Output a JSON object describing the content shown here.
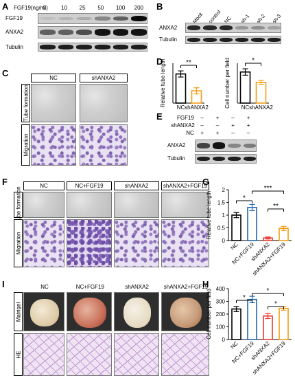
{
  "panels": {
    "A": {
      "label": "A",
      "dose_header": "FGF19(ng/ml)",
      "doses": [
        "0",
        "10",
        "25",
        "50",
        "100",
        "200"
      ],
      "rows": [
        "FGF19",
        "ANXA2",
        "Tubulin"
      ],
      "band_intensity": {
        "FGF19": [
          0.05,
          0.1,
          0.15,
          0.35,
          0.55,
          1.0
        ],
        "ANXA2": [
          0.55,
          0.55,
          0.65,
          0.95,
          0.95,
          0.95
        ],
        "Tubulin": [
          0.9,
          0.9,
          0.9,
          0.9,
          0.9,
          0.9
        ]
      }
    },
    "B": {
      "label": "B",
      "lanes": [
        "Mock",
        "control",
        "NC",
        "sh-1",
        "sh-2",
        "sh-3"
      ],
      "rows": [
        "ANXA2",
        "Tubulin"
      ],
      "band_intensity": {
        "ANXA2": [
          0.85,
          0.85,
          0.85,
          0.25,
          0.3,
          0.2
        ],
        "Tubulin": [
          0.9,
          0.9,
          0.9,
          0.9,
          0.9,
          0.9
        ]
      }
    },
    "C": {
      "label": "C",
      "columns": [
        "NC",
        "shANXA2"
      ],
      "rows": [
        "Tube formation",
        "Migration"
      ]
    },
    "D": {
      "label": "D",
      "left_plot": {
        "ylabel": "Relative tube length",
        "sig": "**"
      },
      "right_plot": {
        "ylabel": "Cell number per field",
        "sig": "*"
      }
    },
    "E": {
      "label": "E",
      "conditions": [
        "FGF19",
        "shANXA2",
        "NC"
      ],
      "pattern": {
        "FGF19": [
          "–",
          "+",
          "–",
          "+"
        ],
        "shANXA2": [
          "–",
          "–",
          "+",
          "+"
        ],
        "NC": [
          "+",
          "+",
          "–",
          "–"
        ]
      },
      "rows": [
        "ANXA2",
        "Tubulin"
      ],
      "band_intensity": {
        "ANXA2": [
          0.7,
          0.95,
          0.35,
          0.4
        ],
        "Tubulin": [
          0.9,
          0.9,
          0.9,
          0.9
        ]
      }
    },
    "F": {
      "label": "F",
      "columns": [
        "NC",
        "NC+FGF19",
        "shANXA2",
        "shANXA2+FGF19"
      ],
      "rows": [
        "Tube formation",
        "Migration"
      ]
    },
    "G": {
      "label": "G"
    },
    "H": {
      "label": "H"
    },
    "I": {
      "label": "I",
      "columns": [
        "NC",
        "NC+FGF19",
        "shANXA2",
        "shANXA2+FGF19"
      ],
      "rows": [
        "Matrigel",
        "HE"
      ]
    }
  },
  "colors": {
    "NC": "#000000",
    "NC+FGF19": "#2166ac",
    "shANXA2": "#e8392f",
    "shANXA2+FGF19": "#f39c12",
    "D_NC": "#000000",
    "D_shANXA2": "#f39c12"
  },
  "chart_data": [
    {
      "id": "D_left",
      "type": "bar",
      "categories": [
        "NC",
        "shANXA2"
      ],
      "values": [
        0.95,
        0.4
      ],
      "errors": [
        0.1,
        0.1
      ],
      "ylabel": "Relative tube length",
      "ylim": [
        0,
        1.3
      ],
      "significance": [
        {
          "between": [
            0,
            1
          ],
          "label": "**"
        }
      ]
    },
    {
      "id": "D_right",
      "type": "bar",
      "categories": [
        "NC",
        "shANXA2"
      ],
      "values": [
        390,
        260
      ],
      "errors": [
        40,
        25
      ],
      "ylabel": "Cell number per field",
      "ylim": [
        0,
        500
      ],
      "significance": [
        {
          "between": [
            0,
            1
          ],
          "label": "*"
        }
      ]
    },
    {
      "id": "G",
      "type": "bar",
      "categories": [
        "NC",
        "NC+FGF19",
        "shANXA2",
        "shANXA2+FGF19"
      ],
      "values": [
        1.0,
        1.3,
        0.1,
        0.48
      ],
      "errors": [
        0.1,
        0.12,
        0.04,
        0.08
      ],
      "ylabel": "Relative tube length",
      "yticks": [
        0.0,
        0.5,
        1.0,
        1.5,
        2.0
      ],
      "ylim": [
        0,
        2.0
      ],
      "significance": [
        {
          "between": [
            0,
            1
          ],
          "label": "*"
        },
        {
          "between": [
            2,
            3
          ],
          "label": "**"
        },
        {
          "between": [
            1,
            3
          ],
          "label": "***"
        }
      ]
    },
    {
      "id": "H",
      "type": "bar",
      "categories": [
        "NC",
        "NC+FGF19",
        "shANXA2",
        "shANXA2+FGF19"
      ],
      "values": [
        240,
        315,
        185,
        245
      ],
      "errors": [
        20,
        25,
        20,
        15
      ],
      "ylabel": "Cell number per field",
      "yticks": [
        0,
        100,
        200,
        300,
        400
      ],
      "ylim": [
        0,
        400
      ],
      "significance": [
        {
          "between": [
            0,
            1
          ],
          "label": "*"
        },
        {
          "between": [
            2,
            3
          ],
          "label": "*"
        },
        {
          "between": [
            1,
            3
          ],
          "label": "*"
        }
      ]
    }
  ]
}
